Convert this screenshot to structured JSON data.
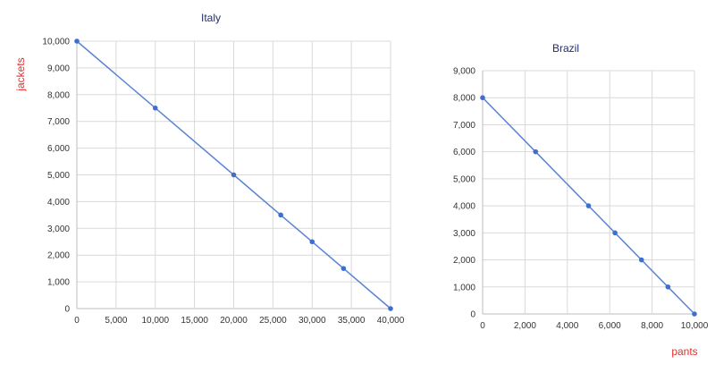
{
  "chart_data": [
    {
      "type": "line",
      "title": "Italy",
      "xlabel": "",
      "ylabel": "jackets",
      "xlim": [
        0,
        40000
      ],
      "ylim": [
        0,
        10000
      ],
      "x_ticks": [
        "0",
        "5,000",
        "10,000",
        "15,000",
        "20,000",
        "25,000",
        "30,000",
        "35,000",
        "40,000"
      ],
      "y_ticks": [
        "0",
        "1,000",
        "2,000",
        "3,000",
        "4,000",
        "5,000",
        "6,000",
        "7,000",
        "8,000",
        "9,000",
        "10,000"
      ],
      "grid": true,
      "series": [
        {
          "x": [
            0,
            10000,
            20000,
            26000,
            30000,
            34000,
            40000
          ],
          "y": [
            10000,
            7500,
            5000,
            3500,
            2500,
            1500,
            0
          ]
        }
      ],
      "colors": {
        "line": "#5b83d3",
        "points": "#3e6fcf",
        "ylabel": "#e0312b",
        "title": "#1f2d6b"
      }
    },
    {
      "type": "line",
      "title": "Brazil",
      "xlabel": "pants",
      "ylabel": "",
      "xlim": [
        0,
        10000
      ],
      "ylim": [
        0,
        9000
      ],
      "x_ticks": [
        "0",
        "2,000",
        "4,000",
        "6,000",
        "8,000",
        "10,000"
      ],
      "y_ticks": [
        "0",
        "1,000",
        "2,000",
        "3,000",
        "4,000",
        "5,000",
        "6,000",
        "7,000",
        "8,000",
        "9,000"
      ],
      "grid": true,
      "series": [
        {
          "x": [
            0,
            2500,
            5000,
            6250,
            7500,
            8750,
            10000
          ],
          "y": [
            8000,
            6000,
            4000,
            3000,
            2000,
            1000,
            0
          ]
        }
      ],
      "colors": {
        "line": "#5b83d3",
        "points": "#3e6fcf",
        "xlabel": "#e0312b",
        "title": "#1f2d6b"
      }
    }
  ]
}
